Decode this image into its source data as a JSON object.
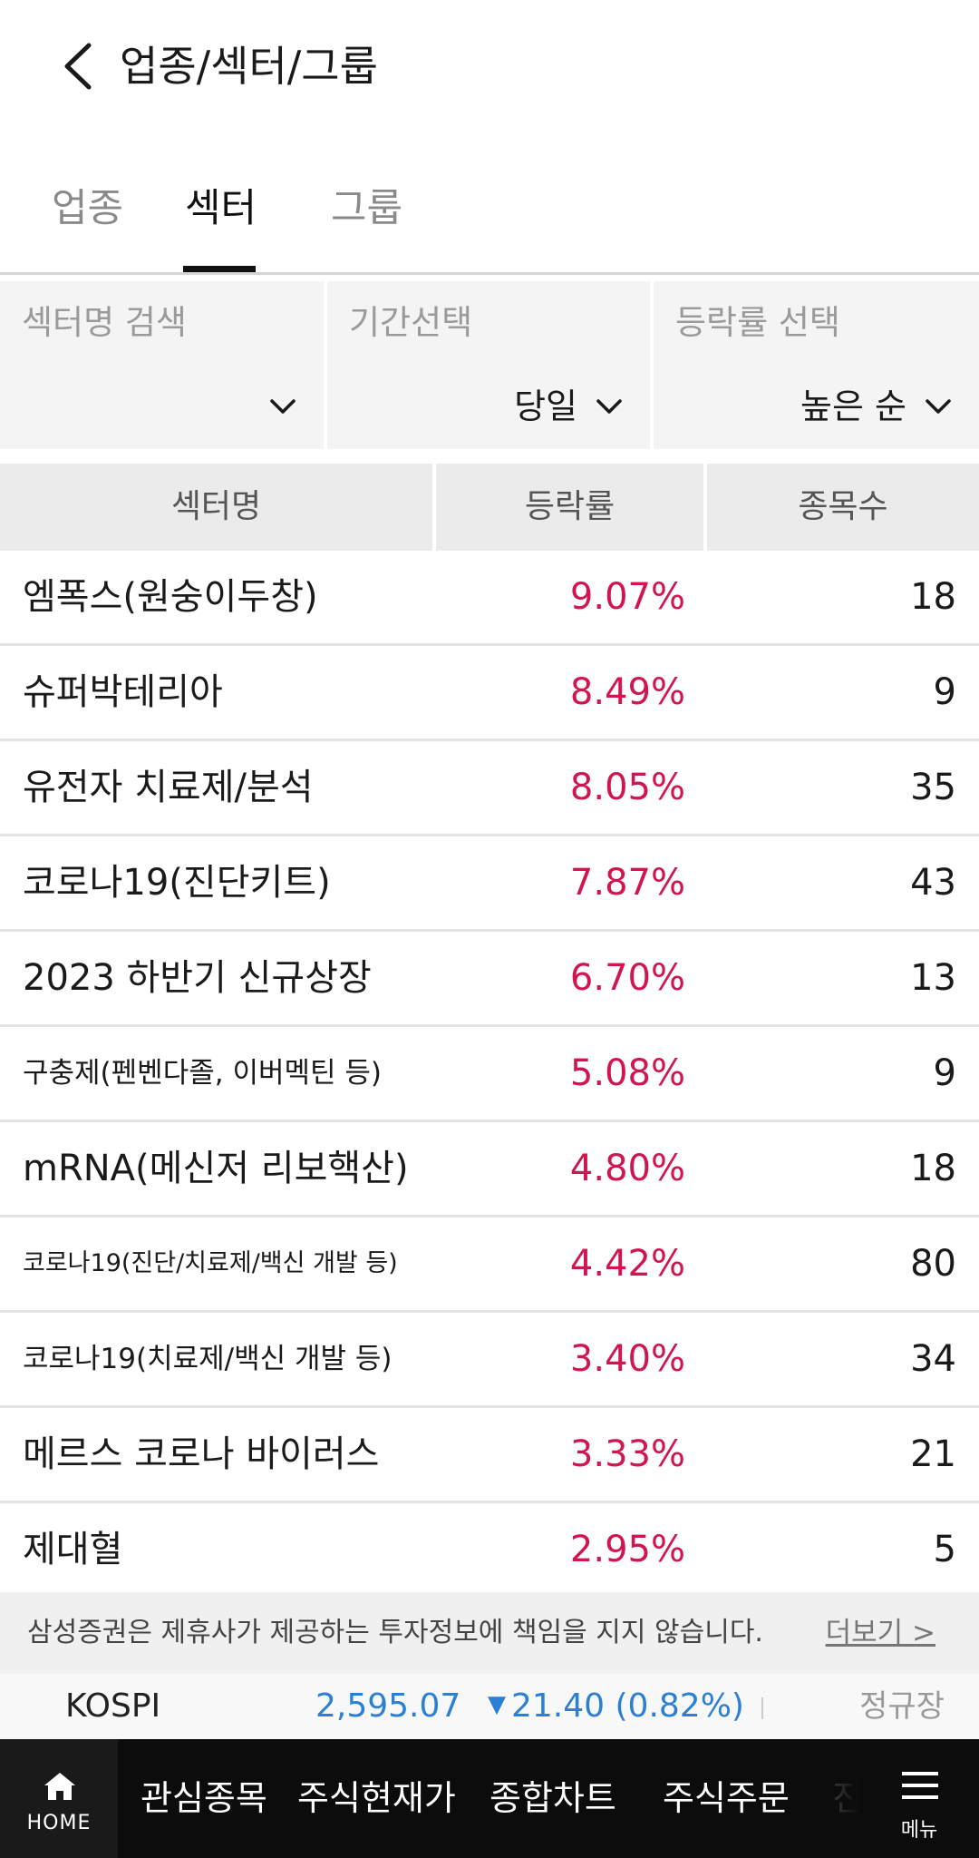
{
  "header": {
    "title": "업종/섹터/그룹"
  },
  "tabs": [
    {
      "label": "업종"
    },
    {
      "label": "섹터"
    },
    {
      "label": "그룹"
    }
  ],
  "active_tab": "섹터",
  "filters": [
    {
      "label": "섹터명 검색",
      "value": ""
    },
    {
      "label": "기간선택",
      "value": "당일"
    },
    {
      "label": "등락률 선택",
      "value": "높은 순"
    }
  ],
  "table": {
    "headers": [
      "섹터명",
      "등락률",
      "종목수"
    ],
    "rows": [
      {
        "name": "엠폭스(원숭이두창)",
        "rate": "9.07%",
        "count": "18"
      },
      {
        "name": "슈퍼박테리아",
        "rate": "8.49%",
        "count": "9"
      },
      {
        "name": "유전자 치료제/분석",
        "rate": "8.05%",
        "count": "35"
      },
      {
        "name": "코로나19(진단키트)",
        "rate": "7.87%",
        "count": "43"
      },
      {
        "name": "2023 하반기 신규상장",
        "rate": "6.70%",
        "count": "13"
      },
      {
        "name": "구충제(펜벤다졸, 이버멕틴 등)",
        "rate": "5.08%",
        "count": "9"
      },
      {
        "name": "mRNA(메신저 리보핵산)",
        "rate": "4.80%",
        "count": "18"
      },
      {
        "name": "코로나19(진단/치료제/백신 개발 등)",
        "rate": "4.42%",
        "count": "80"
      },
      {
        "name": "코로나19(치료제/백신 개발 등)",
        "rate": "3.40%",
        "count": "34"
      },
      {
        "name": "메르스 코로나 바이러스",
        "rate": "3.33%",
        "count": "21"
      },
      {
        "name": "제대혈",
        "rate": "2.95%",
        "count": "5"
      }
    ]
  },
  "notice": {
    "text": "삼성증권은 제휴사가 제공하는 투자정보에 책임을 지지 않습니다.",
    "more": "더보기 >"
  },
  "ticker": {
    "name": "KOSPI",
    "value": "2,595.07",
    "change": "21.40 (0.82%)",
    "direction": "down",
    "status": "정규장"
  },
  "bottom_nav": {
    "home": "HOME",
    "items": [
      "관심종목",
      "주식현재가",
      "종합차트",
      "주식주문",
      "진"
    ],
    "menu": "메뉴"
  },
  "colors": {
    "up_rate": "#d1164f",
    "ticker_down": "#2b80d6",
    "nav_bg": "#0c0c0c"
  },
  "icons": {
    "back": "chevron-left-icon",
    "dropdown": "chevron-down-icon",
    "home": "home-icon",
    "menu": "hamburger-icon",
    "down": "triangle-down-icon"
  }
}
